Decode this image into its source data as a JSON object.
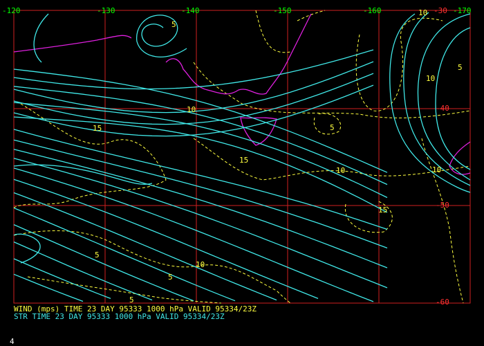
{
  "longitude_labels": [
    "-120",
    "-130",
    "-140",
    "-150",
    "-160",
    "-170"
  ],
  "latitude_labels": [
    "-30",
    "-40",
    "-50",
    "-60"
  ],
  "contour_labels": [
    "10",
    "5",
    "5",
    "10",
    "10",
    "5",
    "15",
    "15",
    "10",
    "10",
    "15",
    "5",
    "10",
    "5",
    "5"
  ],
  "captions": [
    "WIND (mps) TIME 23 DAY 95333 1000 hPa VALID 95334/23Z",
    "STR TIME 23 DAY 95333 1000 hPa VALID 95334/23Z"
  ],
  "page_number": "4"
}
